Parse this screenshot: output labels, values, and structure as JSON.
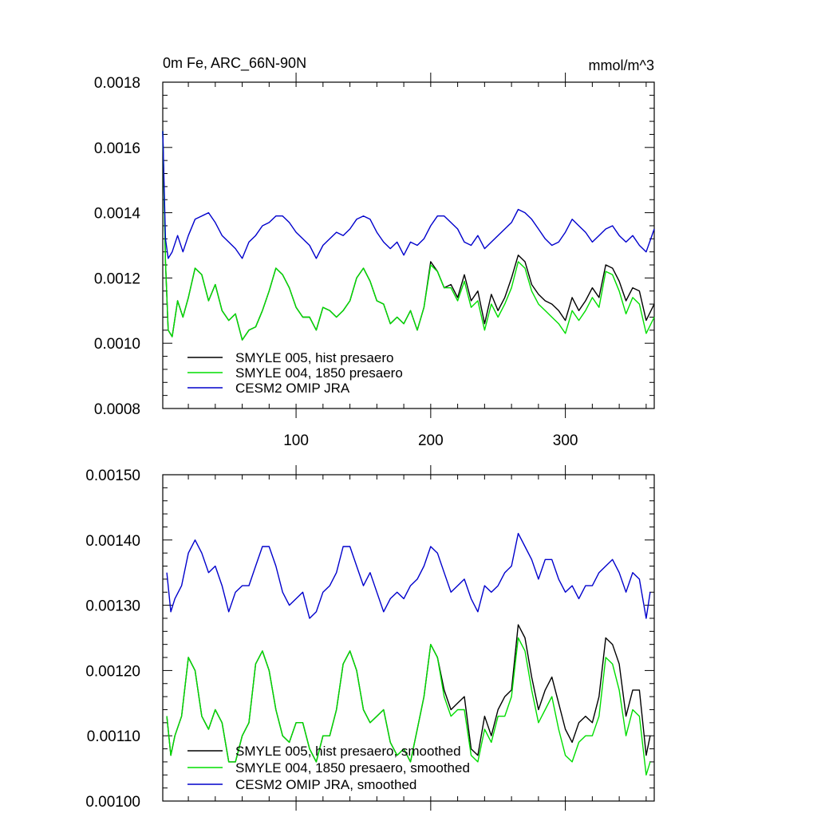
{
  "figure": {
    "title_left": "0m Fe, ARC_66N-90N",
    "title_right": "mmol/m^3"
  },
  "chart_data": [
    {
      "type": "line",
      "title": "0m Fe, ARC_66N-90N",
      "units": "mmol/m^3",
      "xlim": [
        1,
        366
      ],
      "ylim": [
        0.0008,
        0.0018
      ],
      "x_ticks": [
        100,
        200,
        300
      ],
      "x_tick_labels": [
        "100",
        "200",
        "300"
      ],
      "y_ticks": [
        0.0008,
        0.001,
        0.0012,
        0.0014,
        0.0016,
        0.0018
      ],
      "y_tick_labels": [
        "0.0008",
        "0.0010",
        "0.0012",
        "0.0014",
        "0.0016",
        "0.0018"
      ],
      "legend_position": "bottom-left",
      "series": [
        {
          "name": "SMYLE 005, hist presaero",
          "color": "#000000",
          "x": [
            1,
            3,
            5,
            8,
            12,
            16,
            20,
            25,
            30,
            35,
            40,
            45,
            50,
            55,
            60,
            65,
            70,
            75,
            80,
            85,
            90,
            95,
            100,
            105,
            110,
            115,
            120,
            125,
            130,
            135,
            140,
            145,
            150,
            155,
            160,
            165,
            170,
            175,
            180,
            185,
            190,
            195,
            200,
            205,
            210,
            215,
            220,
            225,
            230,
            235,
            240,
            245,
            250,
            255,
            260,
            265,
            270,
            275,
            280,
            285,
            290,
            295,
            300,
            305,
            310,
            315,
            320,
            325,
            330,
            335,
            340,
            345,
            350,
            355,
            360,
            366
          ],
          "y": [
            0.00165,
            0.00125,
            0.00104,
            0.00102,
            0.00113,
            0.00108,
            0.00114,
            0.00123,
            0.00121,
            0.00113,
            0.00118,
            0.0011,
            0.00107,
            0.00109,
            0.00101,
            0.00104,
            0.00105,
            0.0011,
            0.00116,
            0.00123,
            0.00121,
            0.00117,
            0.00111,
            0.00108,
            0.00108,
            0.00104,
            0.00111,
            0.0011,
            0.00108,
            0.0011,
            0.00113,
            0.0012,
            0.00123,
            0.00119,
            0.00113,
            0.00112,
            0.00106,
            0.00108,
            0.00106,
            0.0011,
            0.00104,
            0.00111,
            0.00125,
            0.00122,
            0.00117,
            0.00118,
            0.00114,
            0.00121,
            0.00113,
            0.00116,
            0.00106,
            0.00115,
            0.0011,
            0.00114,
            0.0012,
            0.00127,
            0.00125,
            0.00118,
            0.00115,
            0.00113,
            0.00112,
            0.0011,
            0.00107,
            0.00114,
            0.0011,
            0.00113,
            0.00117,
            0.00114,
            0.00124,
            0.00123,
            0.00119,
            0.00113,
            0.00117,
            0.00116,
            0.00107,
            0.00112
          ]
        },
        {
          "name": "SMYLE 004, 1850 presaero",
          "color": "#00dd00",
          "x": [
            1,
            3,
            5,
            8,
            12,
            16,
            20,
            25,
            30,
            35,
            40,
            45,
            50,
            55,
            60,
            65,
            70,
            75,
            80,
            85,
            90,
            95,
            100,
            105,
            110,
            115,
            120,
            125,
            130,
            135,
            140,
            145,
            150,
            155,
            160,
            165,
            170,
            175,
            180,
            185,
            190,
            195,
            200,
            205,
            210,
            215,
            220,
            225,
            230,
            235,
            240,
            245,
            250,
            255,
            260,
            265,
            270,
            275,
            280,
            285,
            290,
            295,
            300,
            305,
            310,
            315,
            320,
            325,
            330,
            335,
            340,
            345,
            350,
            355,
            360,
            366
          ],
          "y": [
            0.00165,
            0.00125,
            0.00104,
            0.00102,
            0.00113,
            0.00108,
            0.00114,
            0.00123,
            0.00121,
            0.00113,
            0.00118,
            0.0011,
            0.00107,
            0.00109,
            0.00101,
            0.00104,
            0.00105,
            0.0011,
            0.00116,
            0.00123,
            0.00121,
            0.00117,
            0.00111,
            0.00108,
            0.00108,
            0.00104,
            0.00111,
            0.0011,
            0.00108,
            0.0011,
            0.00113,
            0.0012,
            0.00123,
            0.00119,
            0.00113,
            0.00112,
            0.00106,
            0.00108,
            0.00106,
            0.0011,
            0.00104,
            0.00111,
            0.00124,
            0.00122,
            0.00117,
            0.00117,
            0.00113,
            0.00119,
            0.00111,
            0.00113,
            0.00104,
            0.00112,
            0.00108,
            0.00112,
            0.00117,
            0.00125,
            0.00123,
            0.00116,
            0.00112,
            0.0011,
            0.00108,
            0.00106,
            0.00103,
            0.0011,
            0.00107,
            0.0011,
            0.00114,
            0.00111,
            0.00122,
            0.00121,
            0.00116,
            0.00109,
            0.00114,
            0.00112,
            0.00103,
            0.00108
          ]
        },
        {
          "name": "CESM2 OMIP JRA",
          "color": "#0000cc",
          "x": [
            1,
            3,
            5,
            8,
            12,
            16,
            20,
            25,
            30,
            35,
            40,
            45,
            50,
            55,
            60,
            65,
            70,
            75,
            80,
            85,
            90,
            95,
            100,
            105,
            110,
            115,
            120,
            125,
            130,
            135,
            140,
            145,
            150,
            155,
            160,
            165,
            170,
            175,
            180,
            185,
            190,
            195,
            200,
            205,
            210,
            215,
            220,
            225,
            230,
            235,
            240,
            245,
            250,
            255,
            260,
            265,
            270,
            275,
            280,
            285,
            290,
            295,
            300,
            305,
            310,
            315,
            320,
            325,
            330,
            335,
            340,
            345,
            350,
            355,
            360,
            366
          ],
          "y": [
            0.00165,
            0.00132,
            0.00126,
            0.00128,
            0.00133,
            0.00128,
            0.00133,
            0.00138,
            0.00139,
            0.0014,
            0.00137,
            0.00133,
            0.00131,
            0.00129,
            0.00126,
            0.00131,
            0.00133,
            0.00136,
            0.00137,
            0.00139,
            0.00139,
            0.00137,
            0.00134,
            0.00132,
            0.0013,
            0.00126,
            0.0013,
            0.00132,
            0.00134,
            0.00133,
            0.00135,
            0.00138,
            0.00139,
            0.00138,
            0.00134,
            0.00131,
            0.00129,
            0.00131,
            0.00127,
            0.00131,
            0.0013,
            0.00132,
            0.00136,
            0.00139,
            0.00139,
            0.00137,
            0.00135,
            0.00131,
            0.0013,
            0.00133,
            0.00129,
            0.00131,
            0.00133,
            0.00135,
            0.00137,
            0.00141,
            0.0014,
            0.00138,
            0.00135,
            0.00132,
            0.0013,
            0.00131,
            0.00134,
            0.00138,
            0.00136,
            0.00134,
            0.00131,
            0.00133,
            0.00135,
            0.00136,
            0.00133,
            0.00131,
            0.00133,
            0.0013,
            0.00128,
            0.00135
          ]
        }
      ]
    },
    {
      "type": "line",
      "xlim": [
        1,
        366
      ],
      "ylim": [
        0.001,
        0.0015
      ],
      "x_ticks": [
        100,
        200,
        300
      ],
      "x_tick_labels": [],
      "y_ticks": [
        0.001,
        0.0011,
        0.0012,
        0.0013,
        0.0014,
        0.0015
      ],
      "y_tick_labels": [
        "0.00100",
        "0.00110",
        "0.00120",
        "0.00130",
        "0.00140",
        "0.00150"
      ],
      "legend_position": "bottom-left",
      "series": [
        {
          "name": "SMYLE 005, hist presaero, smoothed",
          "color": "#000000",
          "x": [
            4,
            7,
            10,
            15,
            20,
            25,
            30,
            35,
            40,
            45,
            50,
            55,
            60,
            65,
            70,
            75,
            80,
            85,
            90,
            95,
            100,
            105,
            110,
            115,
            120,
            125,
            130,
            135,
            140,
            145,
            150,
            155,
            160,
            165,
            170,
            175,
            180,
            185,
            190,
            195,
            200,
            205,
            210,
            215,
            220,
            225,
            230,
            235,
            240,
            245,
            250,
            255,
            260,
            265,
            270,
            275,
            280,
            285,
            290,
            295,
            300,
            305,
            310,
            315,
            320,
            325,
            330,
            335,
            340,
            345,
            350,
            355,
            360,
            363
          ],
          "y": [
            0.00113,
            0.00107,
            0.0011,
            0.00113,
            0.00122,
            0.0012,
            0.00113,
            0.00111,
            0.00114,
            0.00112,
            0.00106,
            0.00106,
            0.0011,
            0.00112,
            0.00121,
            0.00123,
            0.0012,
            0.00114,
            0.0011,
            0.00109,
            0.00112,
            0.00112,
            0.00108,
            0.00106,
            0.0011,
            0.0011,
            0.00114,
            0.00121,
            0.00123,
            0.0012,
            0.00114,
            0.00112,
            0.00113,
            0.00114,
            0.00109,
            0.00107,
            0.00108,
            0.00106,
            0.00111,
            0.00116,
            0.00124,
            0.00122,
            0.00117,
            0.00114,
            0.00115,
            0.00116,
            0.00108,
            0.00107,
            0.00113,
            0.0011,
            0.00114,
            0.00116,
            0.00117,
            0.00127,
            0.00125,
            0.00119,
            0.00114,
            0.00117,
            0.00119,
            0.00115,
            0.00111,
            0.00109,
            0.00112,
            0.00113,
            0.00112,
            0.00116,
            0.00125,
            0.00124,
            0.00121,
            0.00113,
            0.00117,
            0.00117,
            0.00107,
            0.0011
          ]
        },
        {
          "name": "SMYLE 004, 1850 presaero, smoothed",
          "color": "#00dd00",
          "x": [
            4,
            7,
            10,
            15,
            20,
            25,
            30,
            35,
            40,
            45,
            50,
            55,
            60,
            65,
            70,
            75,
            80,
            85,
            90,
            95,
            100,
            105,
            110,
            115,
            120,
            125,
            130,
            135,
            140,
            145,
            150,
            155,
            160,
            165,
            170,
            175,
            180,
            185,
            190,
            195,
            200,
            205,
            210,
            215,
            220,
            225,
            230,
            235,
            240,
            245,
            250,
            255,
            260,
            265,
            270,
            275,
            280,
            285,
            290,
            295,
            300,
            305,
            310,
            315,
            320,
            325,
            330,
            335,
            340,
            345,
            350,
            355,
            360,
            363
          ],
          "y": [
            0.00113,
            0.00107,
            0.0011,
            0.00113,
            0.00122,
            0.0012,
            0.00113,
            0.00111,
            0.00114,
            0.00112,
            0.00106,
            0.00106,
            0.0011,
            0.00112,
            0.00121,
            0.00123,
            0.0012,
            0.00114,
            0.0011,
            0.00109,
            0.00112,
            0.00112,
            0.00108,
            0.00106,
            0.0011,
            0.0011,
            0.00114,
            0.00121,
            0.00123,
            0.0012,
            0.00114,
            0.00112,
            0.00113,
            0.00114,
            0.00109,
            0.00107,
            0.00108,
            0.00106,
            0.00111,
            0.00116,
            0.00124,
            0.00122,
            0.00116,
            0.00113,
            0.00114,
            0.00114,
            0.00107,
            0.00106,
            0.00111,
            0.00109,
            0.00113,
            0.00113,
            0.00116,
            0.00125,
            0.00123,
            0.00117,
            0.00112,
            0.00114,
            0.00116,
            0.00111,
            0.00107,
            0.00106,
            0.00109,
            0.0011,
            0.0011,
            0.00113,
            0.00122,
            0.00121,
            0.00117,
            0.0011,
            0.00114,
            0.00113,
            0.00104,
            0.00106
          ]
        },
        {
          "name": "CESM2 OMIP JRA, smoothed",
          "color": "#0000cc",
          "x": [
            4,
            7,
            10,
            15,
            20,
            25,
            30,
            35,
            40,
            45,
            50,
            55,
            60,
            65,
            70,
            75,
            80,
            85,
            90,
            95,
            100,
            105,
            110,
            115,
            120,
            125,
            130,
            135,
            140,
            145,
            150,
            155,
            160,
            165,
            170,
            175,
            180,
            185,
            190,
            195,
            200,
            205,
            210,
            215,
            220,
            225,
            230,
            235,
            240,
            245,
            250,
            255,
            260,
            265,
            270,
            275,
            280,
            285,
            290,
            295,
            300,
            305,
            310,
            315,
            320,
            325,
            330,
            335,
            340,
            345,
            350,
            355,
            360,
            363
          ],
          "y": [
            0.00135,
            0.00129,
            0.00131,
            0.00133,
            0.00138,
            0.0014,
            0.00138,
            0.00135,
            0.00136,
            0.00133,
            0.00129,
            0.00132,
            0.00133,
            0.00133,
            0.00136,
            0.00139,
            0.00139,
            0.00136,
            0.00132,
            0.0013,
            0.00131,
            0.00132,
            0.00128,
            0.00129,
            0.00132,
            0.00133,
            0.00135,
            0.00139,
            0.00139,
            0.00136,
            0.00133,
            0.00135,
            0.00132,
            0.00129,
            0.00131,
            0.00132,
            0.00131,
            0.00133,
            0.00134,
            0.00136,
            0.00139,
            0.00138,
            0.00135,
            0.00132,
            0.00133,
            0.00134,
            0.00131,
            0.00129,
            0.00133,
            0.00132,
            0.00133,
            0.00135,
            0.00136,
            0.00141,
            0.00139,
            0.00137,
            0.00134,
            0.00137,
            0.00137,
            0.00134,
            0.00132,
            0.00133,
            0.00131,
            0.00133,
            0.00133,
            0.00135,
            0.00136,
            0.00137,
            0.00135,
            0.00132,
            0.00135,
            0.00134,
            0.00128,
            0.00132
          ]
        }
      ]
    }
  ]
}
